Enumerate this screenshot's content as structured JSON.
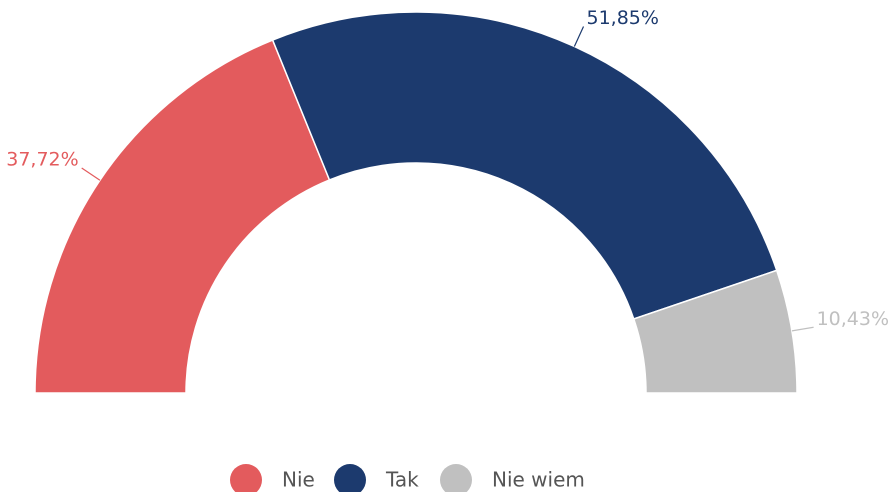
{
  "chart_data": {
    "type": "semi-donut",
    "categories": [
      "Nie",
      "Tak",
      "Nie wiem"
    ],
    "values": [
      37.72,
      51.85,
      10.43
    ],
    "value_labels": [
      "37,72%",
      "51,85%",
      "10,43%"
    ],
    "colors": [
      "#e35b5d",
      "#1c3a6e",
      "#c0c0c0"
    ],
    "legend": "bottom"
  }
}
